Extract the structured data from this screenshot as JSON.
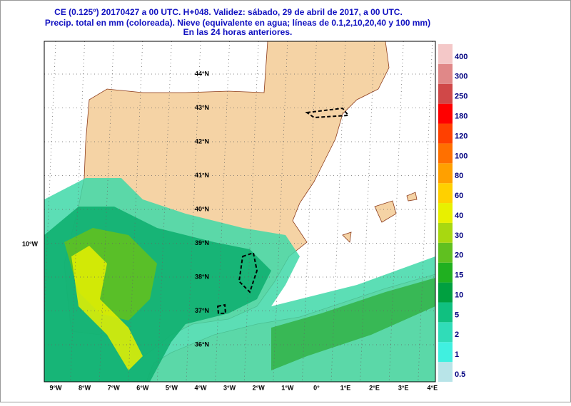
{
  "header": {
    "lines": [
      "CE (0.125º) 20170427 a 00 UTC.  H+048. Validez: sábado, 29 de abril de 2017,  a  00 UTC.",
      "Precip. total en mm (coloreada). Nieve (equivalente en agua; líneas de 0.1,2,10,20,40 y 100 mm)",
      "En las 24 horas anteriores."
    ]
  },
  "map": {
    "lat_labels": [
      "44°N",
      "43°N",
      "42°N",
      "41°N",
      "40°N",
      "39°N",
      "38°N",
      "37°N",
      "36°N"
    ],
    "lon_labels": [
      "9°W",
      "8°W",
      "7°W",
      "6°W",
      "5°W",
      "4°W",
      "3°W",
      "2°W",
      "1°W",
      "0°",
      "1°E",
      "2°E",
      "3°E",
      "4°E"
    ],
    "side_label": "10°W"
  },
  "legend": {
    "levels": [
      {
        "label": "0.5",
        "color": "#b8e4e8"
      },
      {
        "label": "1",
        "color": "#40f0e0"
      },
      {
        "label": "2",
        "color": "#30dcb8"
      },
      {
        "label": "5",
        "color": "#10c080"
      },
      {
        "label": "10",
        "color": "#00a040"
      },
      {
        "label": "15",
        "color": "#20b020"
      },
      {
        "label": "20",
        "color": "#60c020"
      },
      {
        "label": "30",
        "color": "#a8d810"
      },
      {
        "label": "40",
        "color": "#e8f000"
      },
      {
        "label": "60",
        "color": "#ffd000"
      },
      {
        "label": "80",
        "color": "#ffa000"
      },
      {
        "label": "100",
        "color": "#ff7000"
      },
      {
        "label": "120",
        "color": "#ff4000"
      },
      {
        "label": "180",
        "color": "#ff0000"
      },
      {
        "label": "250",
        "color": "#d04848"
      },
      {
        "label": "300",
        "color": "#e08888"
      },
      {
        "label": "400",
        "color": "#f4c8c8"
      }
    ]
  }
}
